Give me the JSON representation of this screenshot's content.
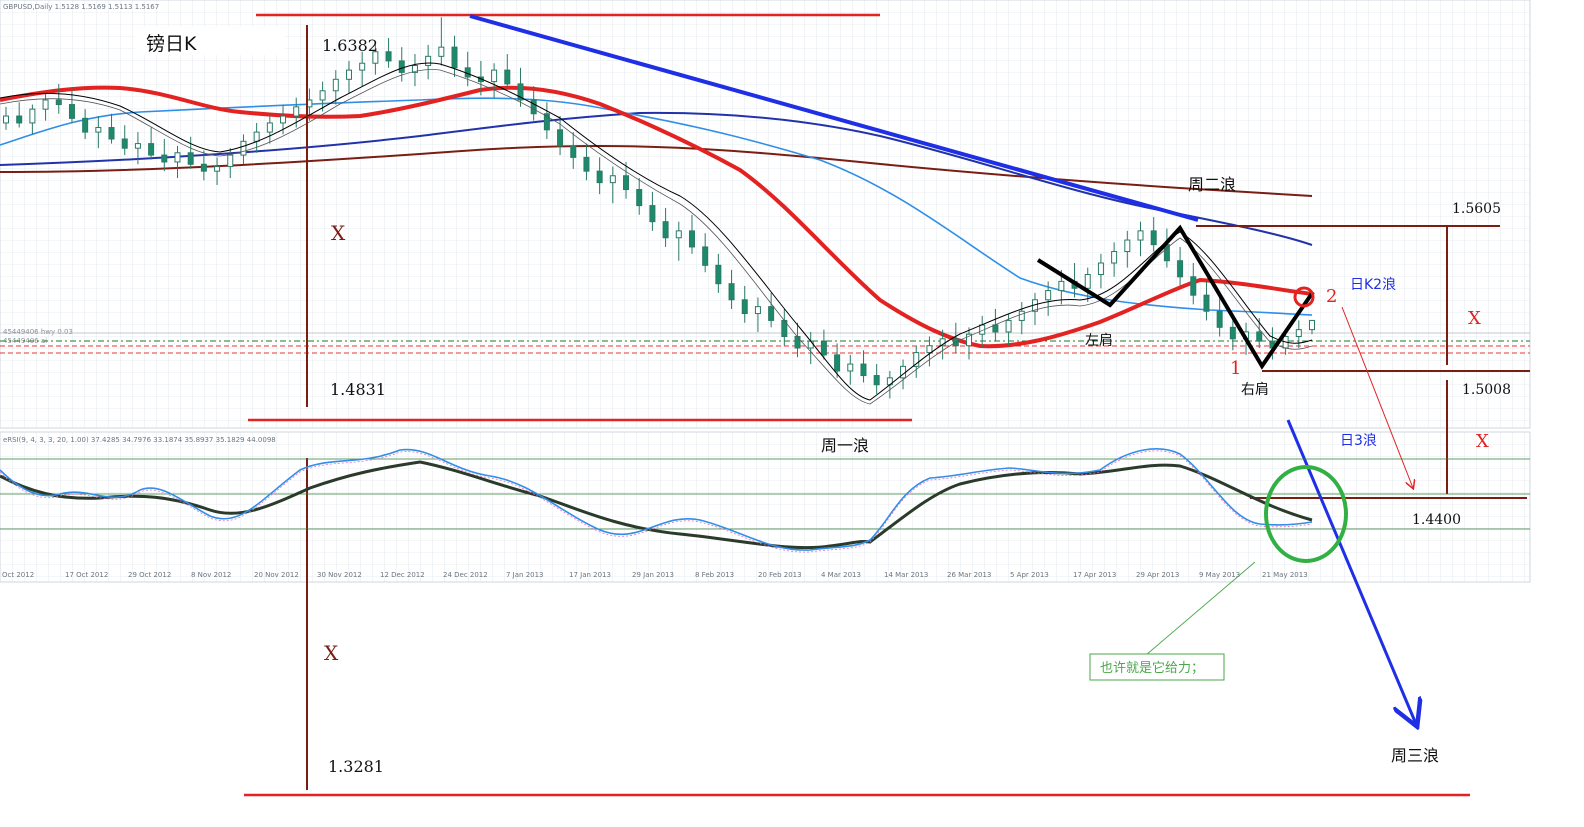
{
  "chart_data": {
    "type": "candlestick",
    "symbol_header": "GBPUSD,Daily  1.5128 1.5169 1.5113 1.5167",
    "title": "镑日K",
    "indicator_header": "eRSI(9, 4, 3, 3, 20, 1.00) 37.4285 34.7976 33.1874 35.8937 35.1829 44.0098",
    "x_ticks": [
      "Oct 2012",
      "17 Oct 2012",
      "29 Oct 2012",
      "8 Nov 2012",
      "20 Nov 2012",
      "30 Nov 2012",
      "12 Dec 2012",
      "24 Dec 2012",
      "7 Jan 2013",
      "17 Jan 2013",
      "29 Jan 2013",
      "8 Feb 2013",
      "20 Feb 2013",
      "4 Mar 2013",
      "14 Mar 2013",
      "26 Mar 2013",
      "5 Apr 2013",
      "17 Apr 2013",
      "29 Apr 2013",
      "9 May 2013",
      "21 May 2013"
    ],
    "price_levels": {
      "top": "1.6382",
      "mid": "1.4831",
      "neckline_high": "1.5605",
      "neckline_low": "1.5008",
      "target_daily": "1.4400",
      "target_weekly": "1.3281"
    },
    "annotations": {
      "wave1_weekly": "周一浪",
      "wave2_weekly": "周二浪",
      "wave3_weekly": "周三浪",
      "wave2_daily": "日K2浪",
      "wave3_daily": "日3浪",
      "left_shoulder": "左肩",
      "right_shoulder": "右肩",
      "point1": "1",
      "point2": "2",
      "x_mark": "X",
      "note": "也许就是它给力；"
    },
    "hline_labels": [
      "45449406 hwy 0.03",
      "45449406 ai"
    ],
    "ohlc": [
      [
        1.603,
        1.61,
        1.6,
        1.606
      ],
      [
        1.606,
        1.612,
        1.601,
        1.603
      ],
      [
        1.603,
        1.611,
        1.598,
        1.609
      ],
      [
        1.609,
        1.616,
        1.604,
        1.613
      ],
      [
        1.613,
        1.62,
        1.607,
        1.611
      ],
      [
        1.611,
        1.618,
        1.603,
        1.605
      ],
      [
        1.605,
        1.609,
        1.596,
        1.599
      ],
      [
        1.599,
        1.606,
        1.592,
        1.601
      ],
      [
        1.601,
        1.607,
        1.594,
        1.596
      ],
      [
        1.596,
        1.602,
        1.589,
        1.592
      ],
      [
        1.592,
        1.599,
        1.585,
        1.594
      ],
      [
        1.594,
        1.601,
        1.587,
        1.589
      ],
      [
        1.589,
        1.596,
        1.582,
        1.586
      ],
      [
        1.586,
        1.593,
        1.579,
        1.59
      ],
      [
        1.59,
        1.597,
        1.583,
        1.585
      ],
      [
        1.585,
        1.591,
        1.578,
        1.582
      ],
      [
        1.582,
        1.588,
        1.576,
        1.584
      ],
      [
        1.584,
        1.592,
        1.579,
        1.589
      ],
      [
        1.589,
        1.598,
        1.585,
        1.595
      ],
      [
        1.595,
        1.603,
        1.59,
        1.599
      ],
      [
        1.599,
        1.607,
        1.594,
        1.603
      ],
      [
        1.603,
        1.611,
        1.598,
        1.606
      ],
      [
        1.606,
        1.614,
        1.601,
        1.61
      ],
      [
        1.61,
        1.618,
        1.604,
        1.613
      ],
      [
        1.613,
        1.621,
        1.608,
        1.617
      ],
      [
        1.617,
        1.626,
        1.611,
        1.622
      ],
      [
        1.622,
        1.63,
        1.616,
        1.626
      ],
      [
        1.626,
        1.634,
        1.619,
        1.629
      ],
      [
        1.629,
        1.638,
        1.624,
        1.634
      ],
      [
        1.634,
        1.64,
        1.627,
        1.63
      ],
      [
        1.63,
        1.636,
        1.621,
        1.625
      ],
      [
        1.625,
        1.633,
        1.619,
        1.628
      ],
      [
        1.628,
        1.637,
        1.622,
        1.632
      ],
      [
        1.632,
        1.649,
        1.628,
        1.636
      ],
      [
        1.636,
        1.641,
        1.623,
        1.627
      ],
      [
        1.627,
        1.634,
        1.619,
        1.623
      ],
      [
        1.623,
        1.63,
        1.615,
        1.621
      ],
      [
        1.621,
        1.629,
        1.614,
        1.626
      ],
      [
        1.626,
        1.633,
        1.618,
        1.62
      ],
      [
        1.62,
        1.627,
        1.61,
        1.613
      ],
      [
        1.613,
        1.619,
        1.604,
        1.607
      ],
      [
        1.607,
        1.612,
        1.596,
        1.6
      ],
      [
        1.6,
        1.606,
        1.589,
        1.593
      ],
      [
        1.593,
        1.599,
        1.583,
        1.588
      ],
      [
        1.588,
        1.594,
        1.578,
        1.582
      ],
      [
        1.582,
        1.588,
        1.572,
        1.577
      ],
      [
        1.577,
        1.584,
        1.568,
        1.58
      ],
      [
        1.58,
        1.586,
        1.57,
        1.574
      ],
      [
        1.574,
        1.579,
        1.563,
        1.567
      ],
      [
        1.567,
        1.573,
        1.556,
        1.56
      ],
      [
        1.56,
        1.566,
        1.549,
        1.553
      ],
      [
        1.553,
        1.56,
        1.543,
        1.556
      ],
      [
        1.556,
        1.563,
        1.546,
        1.549
      ],
      [
        1.549,
        1.555,
        1.538,
        1.541
      ],
      [
        1.541,
        1.546,
        1.529,
        1.533
      ],
      [
        1.533,
        1.539,
        1.522,
        1.526
      ],
      [
        1.526,
        1.532,
        1.516,
        1.52
      ],
      [
        1.52,
        1.527,
        1.512,
        1.523
      ],
      [
        1.523,
        1.529,
        1.514,
        1.517
      ],
      [
        1.517,
        1.522,
        1.506,
        1.51
      ],
      [
        1.51,
        1.516,
        1.501,
        1.505
      ],
      [
        1.505,
        1.512,
        1.498,
        1.508
      ],
      [
        1.508,
        1.513,
        1.5,
        1.502
      ],
      [
        1.502,
        1.507,
        1.492,
        1.495
      ],
      [
        1.495,
        1.502,
        1.489,
        1.498
      ],
      [
        1.498,
        1.504,
        1.49,
        1.493
      ],
      [
        1.493,
        1.498,
        1.485,
        1.489
      ],
      [
        1.489,
        1.495,
        1.483,
        1.492
      ],
      [
        1.492,
        1.5,
        1.487,
        1.497
      ],
      [
        1.497,
        1.506,
        1.492,
        1.503
      ],
      [
        1.503,
        1.51,
        1.497,
        1.506
      ],
      [
        1.506,
        1.513,
        1.5,
        1.509
      ],
      [
        1.509,
        1.516,
        1.503,
        1.506
      ],
      [
        1.506,
        1.514,
        1.5,
        1.511
      ],
      [
        1.511,
        1.519,
        1.505,
        1.515
      ],
      [
        1.515,
        1.522,
        1.508,
        1.512
      ],
      [
        1.512,
        1.52,
        1.506,
        1.517
      ],
      [
        1.517,
        1.525,
        1.511,
        1.521
      ],
      [
        1.521,
        1.529,
        1.515,
        1.526
      ],
      [
        1.526,
        1.534,
        1.519,
        1.53
      ],
      [
        1.53,
        1.539,
        1.524,
        1.534
      ],
      [
        1.534,
        1.542,
        1.527,
        1.531
      ],
      [
        1.531,
        1.54,
        1.525,
        1.537
      ],
      [
        1.537,
        1.546,
        1.531,
        1.542
      ],
      [
        1.542,
        1.551,
        1.536,
        1.547
      ],
      [
        1.547,
        1.556,
        1.54,
        1.552
      ],
      [
        1.552,
        1.56,
        1.545,
        1.556
      ],
      [
        1.556,
        1.562,
        1.547,
        1.55
      ],
      [
        1.55,
        1.557,
        1.54,
        1.543
      ],
      [
        1.543,
        1.549,
        1.532,
        1.536
      ],
      [
        1.536,
        1.542,
        1.524,
        1.528
      ],
      [
        1.528,
        1.534,
        1.517,
        1.521
      ],
      [
        1.521,
        1.527,
        1.51,
        1.514
      ],
      [
        1.514,
        1.52,
        1.504,
        1.509
      ],
      [
        1.509,
        1.516,
        1.502,
        1.512
      ],
      [
        1.512,
        1.518,
        1.505,
        1.508
      ],
      [
        1.508,
        1.514,
        1.5,
        1.505
      ],
      [
        1.505,
        1.512,
        1.502,
        1.51
      ],
      [
        1.51,
        1.517,
        1.505,
        1.513
      ],
      [
        1.513,
        1.517,
        1.511,
        1.517
      ]
    ]
  },
  "colors": {
    "bull": "#1d8a6c",
    "bear": "#1d8a6c",
    "wave_blue": "#1f2fe6",
    "ma_red": "#e32222",
    "ma_navy": "#2233aa",
    "ma_light": "#2f8fe8",
    "ma_brown": "#7a1e14",
    "green_circle": "#33b044",
    "note_green": "#49a84a"
  }
}
